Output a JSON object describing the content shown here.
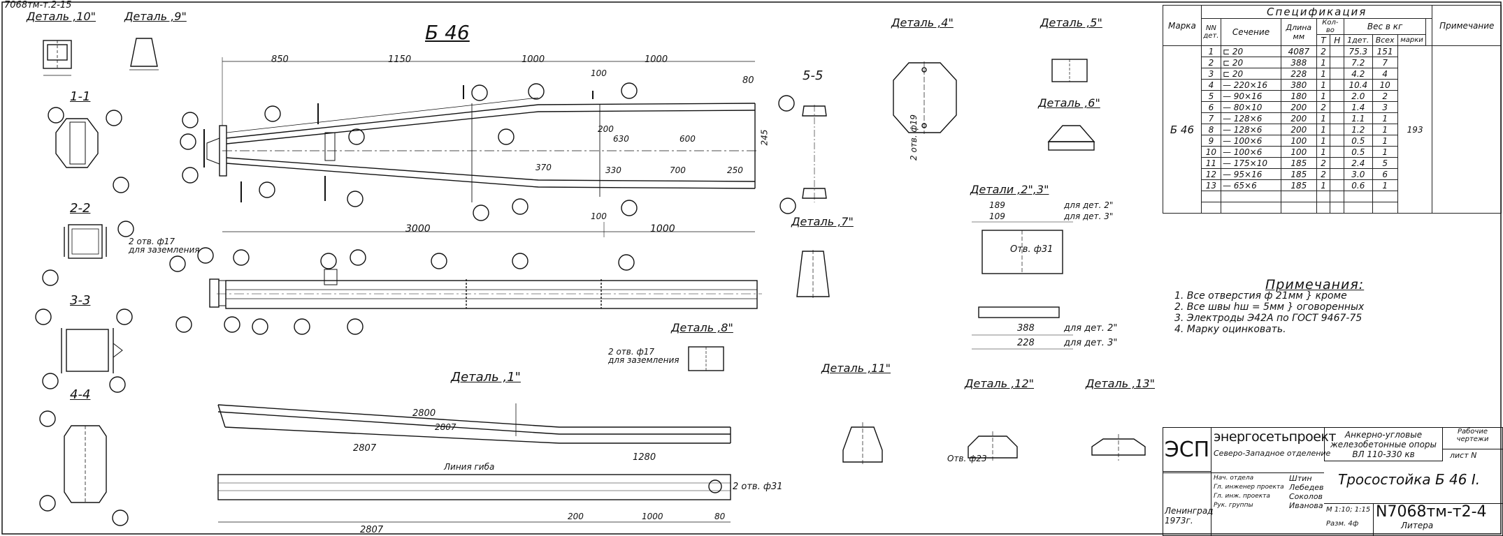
{
  "corner_code": "7068тм-т.2-15",
  "main_title": "Б 46",
  "details": {
    "d10": "Деталь ,10\"",
    "d9": "Деталь ,9\"",
    "d4": "Деталь ,4\"",
    "d5": "Деталь ,5\"",
    "d6": "Деталь ,6\"",
    "d7": "Деталь ,7\"",
    "d8": "Деталь ,8\"",
    "d1": "Деталь ,1\"",
    "d11": "Деталь ,11\"",
    "d12": "Деталь ,12\"",
    "d13": "Деталь ,13\"",
    "d23": "Детали ,2\",3\""
  },
  "sections": {
    "s11": "1-1",
    "s22": "2-2",
    "s33": "3-3",
    "s44": "4-4",
    "s55": "5-5"
  },
  "dims": {
    "top": [
      "850",
      "1150",
      "1000",
      "1000",
      "80"
    ],
    "d3000": "3000",
    "d1000": "1000",
    "d100a": "100",
    "d100b": "100",
    "d200": "200",
    "d630": "630",
    "d600": "600",
    "d370": "370",
    "d330": "330",
    "d700": "700",
    "d250": "250",
    "d245": "245",
    "d2800": "2800",
    "d2807": "2807",
    "d1280": "1280",
    "d200b": "200",
    "d1000b": "1000",
    "d80": "80",
    "line_gib": "Линия гиба",
    "holes_ground": "2 отв. ф17\nдля заземления",
    "holes31": "2 отв. ф31",
    "otv31": "Отв. ф31",
    "otv23": "Отв. ф23",
    "otv19": "2 отв. ф19",
    "for_det2": "для дет. 2\"",
    "for_det3": "для дет. 3\"",
    "d388": "388",
    "d228": "228",
    "d189": "189",
    "d109": "109"
  },
  "spec": {
    "title": "Спецификация",
    "col_mark": "Марка",
    "col_nn": "NN\nдет.",
    "col_section": "Сечение",
    "col_length": "Длина\nмм",
    "col_qty": "Кол-во",
    "col_t": "Т",
    "col_n": "Н",
    "col_weight": "Вес в кг",
    "col_one": "1дет.",
    "col_all": "Всех",
    "col_brand": "марки",
    "col_note": "Примечание",
    "mark": "Б 46",
    "brand_weight": "193",
    "rows": [
      [
        "1",
        "⊏ 20",
        "4087",
        "2",
        "75.3",
        "151"
      ],
      [
        "2",
        "⊏ 20",
        "388",
        "1",
        "7.2",
        "7"
      ],
      [
        "3",
        "⊏ 20",
        "228",
        "1",
        "4.2",
        "4"
      ],
      [
        "4",
        "— 220×16",
        "380",
        "1",
        "10.4",
        "10"
      ],
      [
        "5",
        "— 90×16",
        "180",
        "1",
        "2.0",
        "2"
      ],
      [
        "6",
        "— 80×10",
        "200",
        "2",
        "1.4",
        "3"
      ],
      [
        "7",
        "— 128×6",
        "200",
        "1",
        "1.1",
        "1"
      ],
      [
        "8",
        "— 128×6",
        "200",
        "1",
        "1.2",
        "1"
      ],
      [
        "9",
        "— 100×6",
        "100",
        "1",
        "0.5",
        "1"
      ],
      [
        "10",
        "— 100×6",
        "100",
        "1",
        "0.5",
        "1"
      ],
      [
        "11",
        "— 175×10",
        "185",
        "2",
        "2.4",
        "5"
      ],
      [
        "12",
        "— 95×16",
        "185",
        "2",
        "3.0",
        "6"
      ],
      [
        "13",
        "— 65×6",
        "185",
        "1",
        "0.6",
        "1"
      ]
    ]
  },
  "notes": {
    "title": "Примечания:",
    "items": [
      "1. Все отверстия ф 21мм } кроме",
      "2. Все швы hш = 5мм  } оговоренных",
      "3. Электроды Э42А по ГОСТ 9467-75",
      "4. Марку оцинковать."
    ]
  },
  "stamp": {
    "esp": "ЭСП",
    "org": "энергосетьпроект",
    "branch": "Северо-Западное отделение",
    "project": "Анкерно-угловые\nжелезобетонные опоры\nВЛ 110-330 кв",
    "stage": "Рабочие\nчертежи",
    "sheet": "лист N",
    "drawing_title": "Тросостойка Б 46 I.",
    "roles": [
      "Нач. отдела",
      "Гл. инженер проекта",
      "Гл. инж. проекта",
      "Рук. группы"
    ],
    "names": [
      "Штин",
      "Лебедев",
      "Соколов",
      "Иванова"
    ],
    "city": "Ленинград\n1973г.",
    "scale": "М 1:10; 1:15",
    "format": "Разм. 4ф",
    "litera": "Литера",
    "number": "N7068тм-т2-4"
  }
}
